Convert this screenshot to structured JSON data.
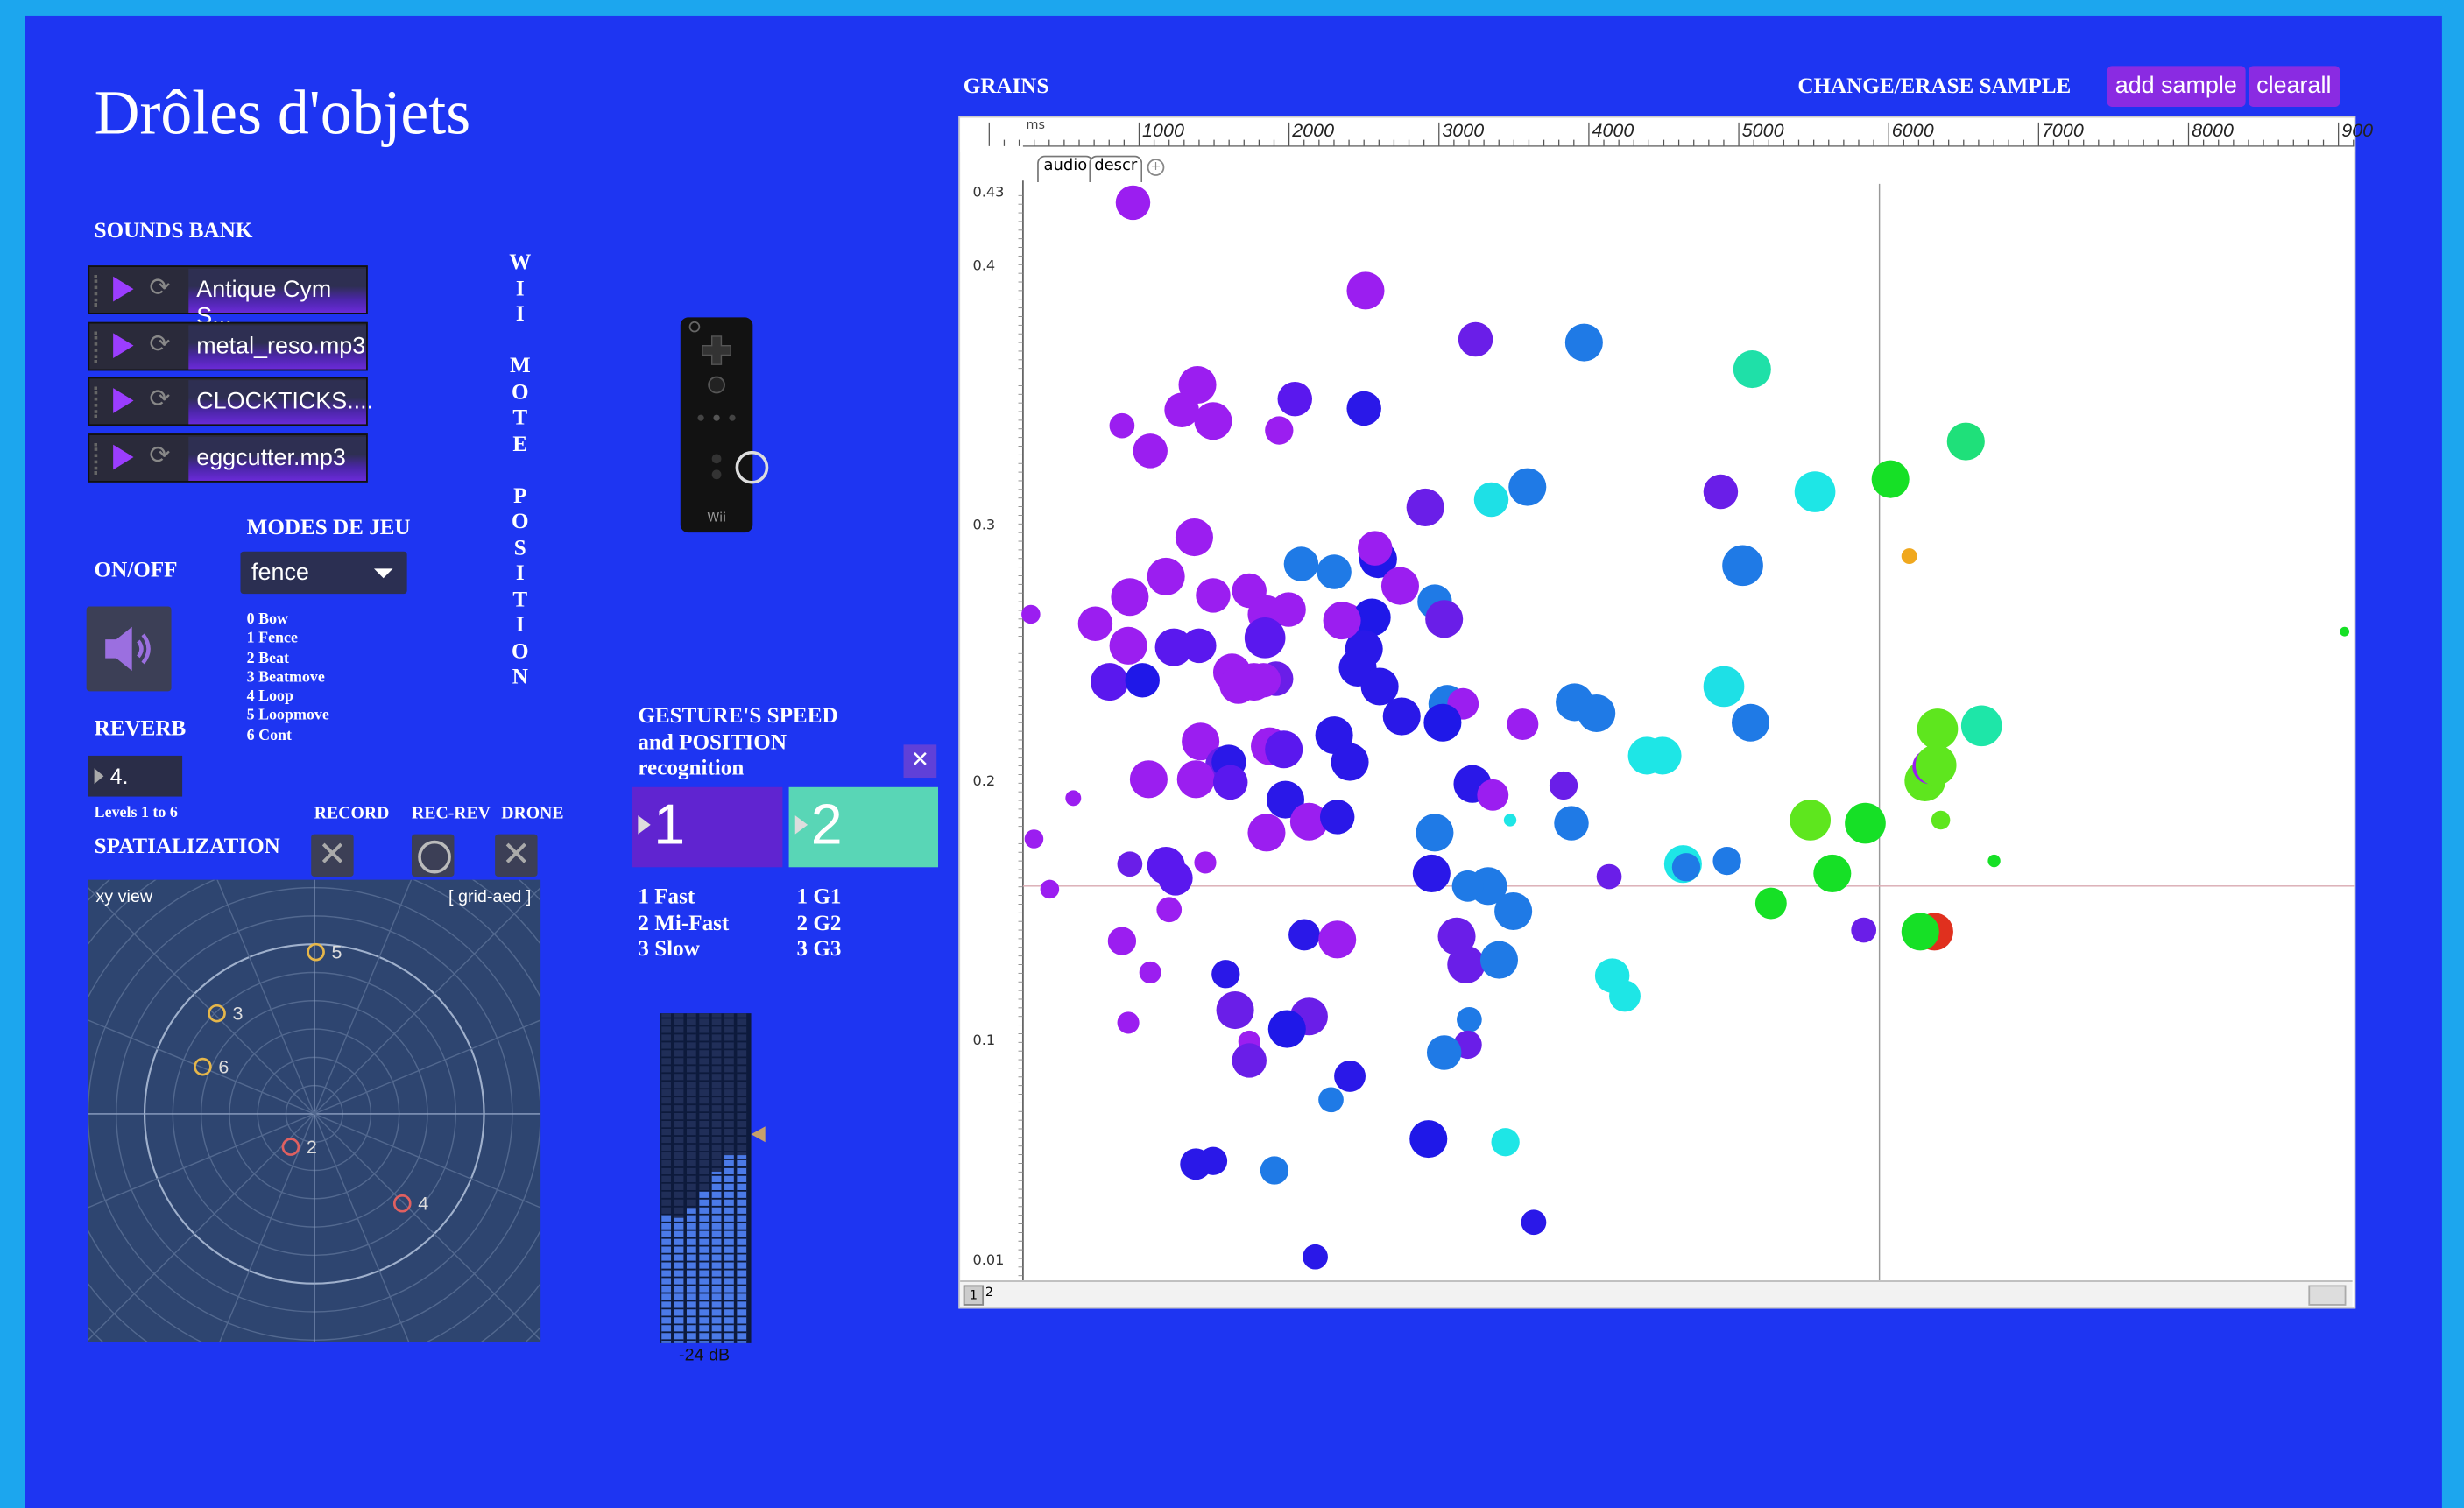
{
  "app": {
    "title": "Drôles d'objets"
  },
  "labels": {
    "sounds_bank": "SOUNDS BANK",
    "modes_de_jeu": "MODES DE JEU",
    "on_off": "ON/OFF",
    "reverb": "REVERB",
    "levels": "Levels 1 to 6",
    "spatialization": "SPATIALIZATION",
    "record": "RECORD",
    "rec_rev": "REC-REV",
    "drone": "DRONE",
    "wii_mote_position": "WIIMOTEPOSITION",
    "gesture_title_1": "GESTURE'S SPEED",
    "gesture_title_2": "and  POSITION",
    "gesture_title_3": "recognition",
    "grains": "GRAINS",
    "change_erase": "CHANGE/ERASE SAMPLE"
  },
  "sounds": [
    {
      "name": "Antique Cym S..."
    },
    {
      "name": "metal_reso.mp3"
    },
    {
      "name": "CLOCKTICKS...."
    },
    {
      "name": "eggcutter.mp3"
    }
  ],
  "mode_select": {
    "value": "fence",
    "icon": "chevron-down-icon"
  },
  "modes_list": [
    "0 Bow",
    "1 Fence",
    "2 Beat",
    "3 Beatmove",
    "4 Loop",
    "5 Loopmove",
    "6 Cont"
  ],
  "reverb": {
    "value": "4."
  },
  "spatial": {
    "view_label": "xy view",
    "grid_label": "[ grid-aed ]",
    "sources": [
      {
        "id": "5",
        "color": "#e5b64a"
      },
      {
        "id": "3",
        "color": "#e5b64a"
      },
      {
        "id": "6",
        "color": "#e5b64a"
      },
      {
        "id": "2",
        "color": "#e06060"
      },
      {
        "id": "4",
        "color": "#e06060"
      }
    ]
  },
  "gesture": {
    "button1": "1",
    "button2": "2",
    "speeds": [
      "1 Fast",
      "2 Mi-Fast",
      "3 Slow"
    ],
    "gestures": [
      "1 G1",
      "2 G2",
      "3 G3"
    ]
  },
  "meter": {
    "db_label": "-24 dB"
  },
  "grains_panel": {
    "add_sample": "add sample",
    "clearall": "clearall",
    "ruler_unit": "ms",
    "ruler_ticks": [
      "1000",
      "2000",
      "3000",
      "4000",
      "5000",
      "6000",
      "7000",
      "8000",
      "900"
    ],
    "tabs": [
      "audio",
      "descr"
    ],
    "y_ticks": [
      "0.43",
      "0.4",
      "0.3",
      "0.2",
      "0.1",
      "0.01"
    ],
    "page_numbers": [
      "1",
      "2"
    ]
  },
  "colors": {
    "background": "#1e35f2",
    "border": "#1ca6ee",
    "accent_purple": "#8a2be2",
    "teal": "#59d6b6"
  }
}
